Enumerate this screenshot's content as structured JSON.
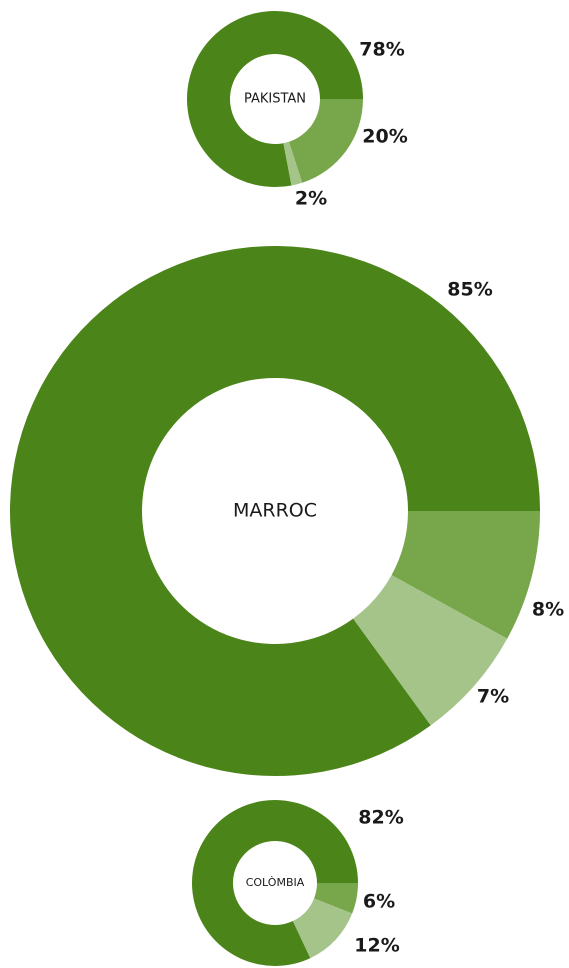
{
  "chart_data": [
    {
      "type": "donut",
      "label": "PAKISTAN",
      "values": [
        78,
        20,
        2
      ],
      "value_labels": [
        "78%",
        "20%",
        "2%"
      ],
      "colors": [
        "#4b8418",
        "#78a64a",
        "#a5c48a"
      ]
    },
    {
      "type": "donut",
      "label": "MARROC",
      "values": [
        85,
        8,
        7
      ],
      "value_labels": [
        "85%",
        "8%",
        "7%"
      ],
      "colors": [
        "#4b8418",
        "#78a64a",
        "#a5c48a"
      ]
    },
    {
      "type": "donut",
      "label": "COLÒMBIA",
      "values": [
        82,
        6,
        12
      ],
      "value_labels": [
        "82%",
        "6%",
        "12%"
      ],
      "colors": [
        "#4b8418",
        "#78a64a",
        "#a5c48a"
      ]
    }
  ]
}
